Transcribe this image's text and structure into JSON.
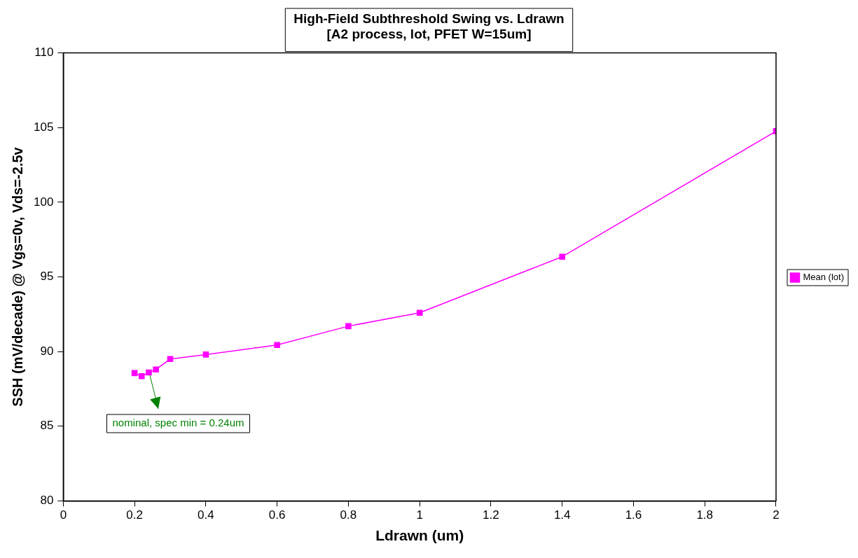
{
  "chart_data": {
    "type": "line",
    "title": "High-Field Subthreshold Swing vs. Ldrawn\n[A2 process, lot, PFET W=15um]",
    "xlabel": "Ldrawn (um)",
    "ylabel": "SSH (mV/decade) @ Vgs=0v, Vds=-2.5v",
    "x": [
      0.2,
      0.22,
      0.24,
      0.26,
      0.3,
      0.4,
      0.6,
      0.8,
      1.0,
      1.4,
      2.0
    ],
    "series": [
      {
        "name": "Mean (lot)",
        "color": "#ff00ff",
        "values": [
          88.56,
          88.35,
          88.6,
          88.8,
          89.5,
          89.8,
          90.44,
          91.7,
          92.6,
          96.35,
          104.76
        ]
      }
    ],
    "xlim": [
      0,
      2
    ],
    "xticks": [
      0,
      0.2,
      0.4,
      0.6,
      0.8,
      1,
      1.2,
      1.4,
      1.6,
      1.8,
      2
    ],
    "ylim": [
      80,
      110
    ],
    "yticks": [
      80,
      85,
      90,
      95,
      100,
      105,
      110
    ],
    "grid": false,
    "legend": "right",
    "marker": "square",
    "line_style": "solid",
    "annotations": [
      {
        "text": "nominal, spec min = 0.24um",
        "x": 0.24,
        "y": 88.6
      }
    ]
  }
}
